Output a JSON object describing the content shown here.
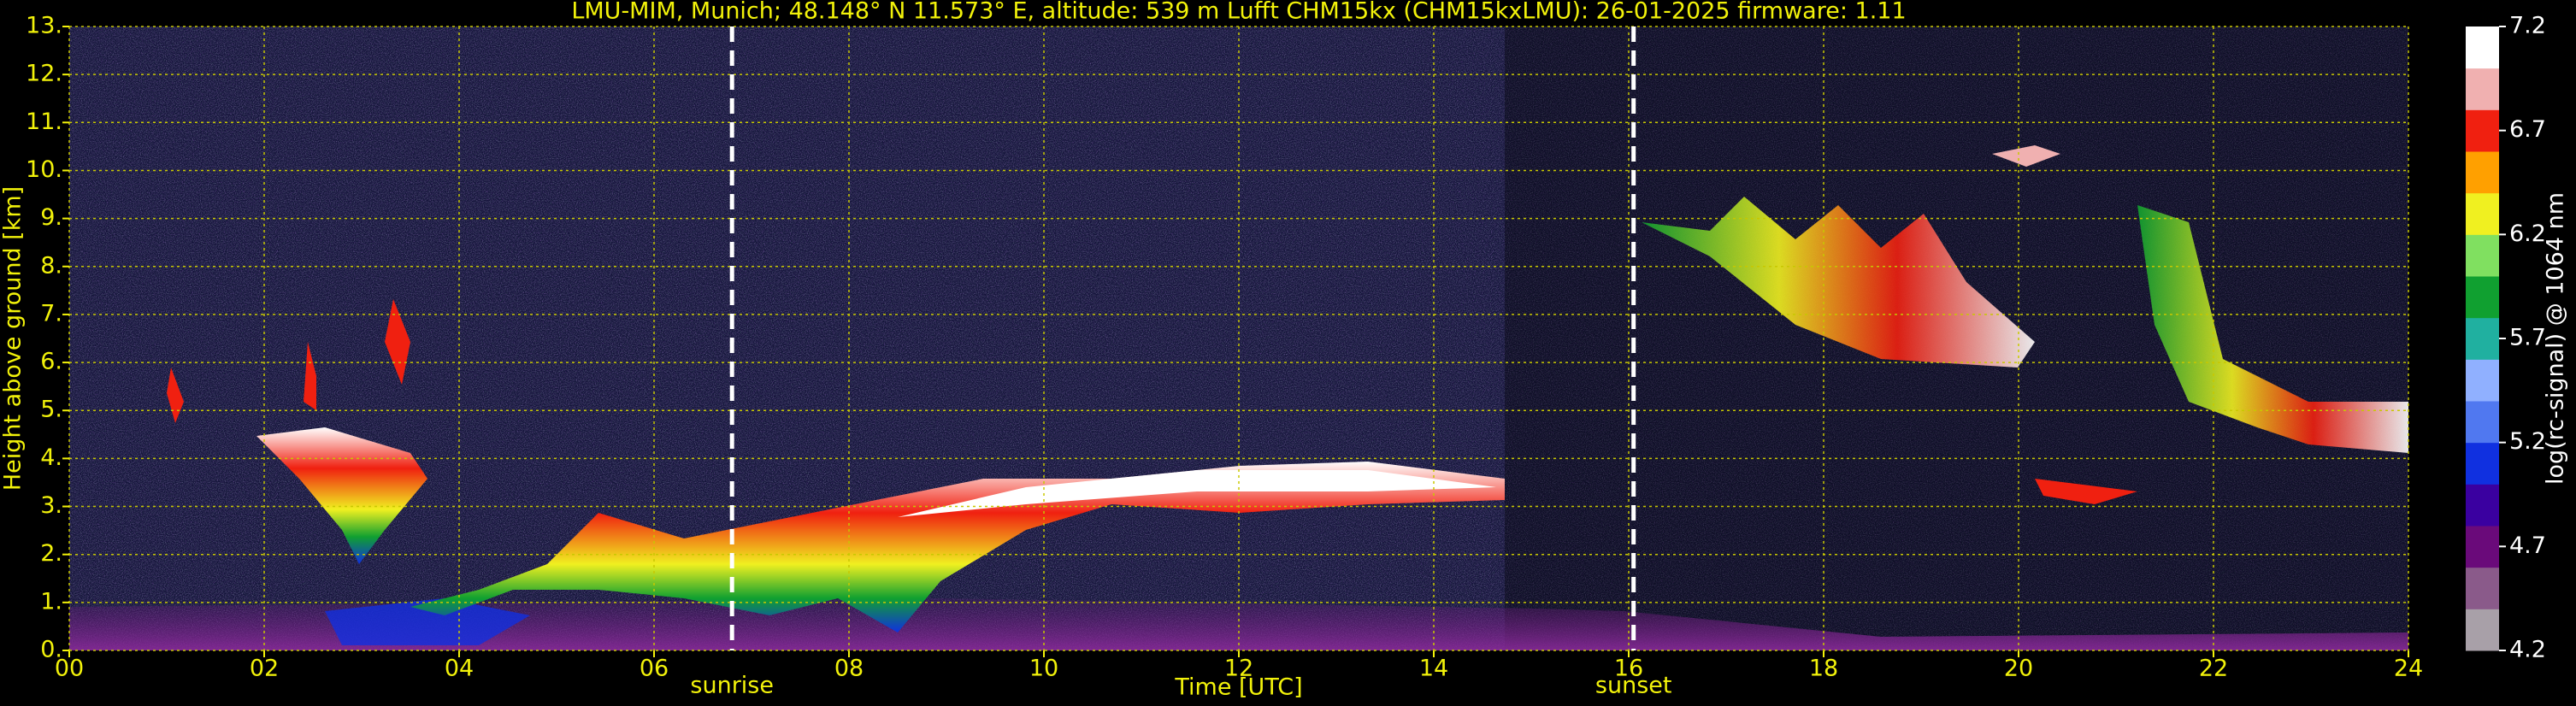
{
  "chart_data": {
    "type": "heatmap",
    "title": "LMU-MIM, Munich; 48.148° N 11.573° E, altitude: 539 m    Lufft CHM15kx (CHM15kxLMU): 26-01-2025    firmware: 1.11",
    "xlabel": "Time [UTC]",
    "ylabel": "Height above ground [km]",
    "xlim": [
      0,
      24
    ],
    "xticks": [
      {
        "value": 0,
        "label": "00"
      },
      {
        "value": 2,
        "label": "02"
      },
      {
        "value": 4,
        "label": "04"
      },
      {
        "value": 6,
        "label": "06"
      },
      {
        "value": 8,
        "label": "08"
      },
      {
        "value": 10,
        "label": "10"
      },
      {
        "value": 12,
        "label": "12"
      },
      {
        "value": 14,
        "label": "14"
      },
      {
        "value": 16,
        "label": "16"
      },
      {
        "value": 18,
        "label": "18"
      },
      {
        "value": 20,
        "label": "20"
      },
      {
        "value": 22,
        "label": "22"
      },
      {
        "value": 24,
        "label": "24"
      }
    ],
    "ylim": [
      0,
      13
    ],
    "yticks": [
      {
        "value": 0,
        "label": "0."
      },
      {
        "value": 1,
        "label": "1."
      },
      {
        "value": 2,
        "label": "2."
      },
      {
        "value": 3,
        "label": "3."
      },
      {
        "value": 4,
        "label": "4."
      },
      {
        "value": 5,
        "label": "5."
      },
      {
        "value": 6,
        "label": "6."
      },
      {
        "value": 7,
        "label": "7."
      },
      {
        "value": 8,
        "label": "8."
      },
      {
        "value": 9,
        "label": "9."
      },
      {
        "value": 10,
        "label": "10."
      },
      {
        "value": 11,
        "label": "11."
      },
      {
        "value": 12,
        "label": "12."
      },
      {
        "value": 13,
        "label": "13."
      }
    ],
    "grid": true,
    "annotations": [
      {
        "text": "sunrise",
        "x": 6.8
      },
      {
        "text": "sunset",
        "x": 16.05
      }
    ],
    "colorbar": {
      "label": "log(rc-signal) @ 1064 nm",
      "lim": [
        4.2,
        7.2
      ],
      "ticks": [
        4.2,
        4.7,
        5.2,
        5.7,
        6.2,
        6.7,
        7.2
      ],
      "colors": [
        "#a8a0a8",
        "#8a5a8a",
        "#6a0a7a",
        "#3a00a0",
        "#1030e0",
        "#5078f0",
        "#90b0ff",
        "#20b0a0",
        "#10a030",
        "#80e060",
        "#f0f020",
        "#ffa000",
        "#f02010",
        "#f0b0b0",
        "#ffffff"
      ]
    }
  }
}
